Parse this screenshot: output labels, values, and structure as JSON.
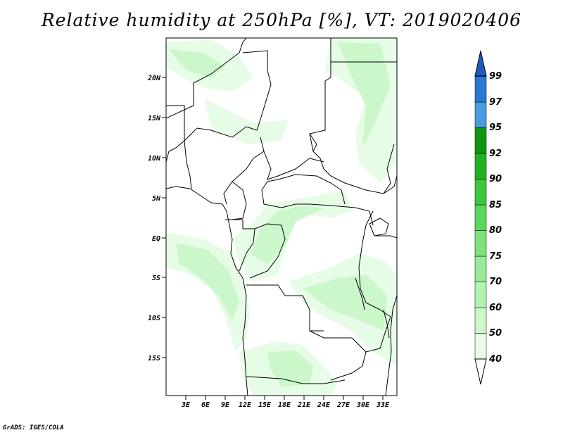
{
  "title": "Relative humidity at 250hPa [%], VT: 2019020406",
  "credit": "GrADS: IGES/COLA",
  "map": {
    "lat_labels": [
      "20N",
      "15N",
      "10N",
      "5N",
      "EQ",
      "5S",
      "10S",
      "15S"
    ],
    "lon_labels": [
      "3E",
      "6E",
      "9E",
      "12E",
      "15E",
      "18E",
      "21E",
      "24E",
      "27E",
      "30E",
      "33E"
    ]
  },
  "colorbar": {
    "levels": [
      "40",
      "50",
      "60",
      "70",
      "75",
      "80",
      "85",
      "90",
      "92",
      "95",
      "97",
      "99"
    ],
    "colors": [
      "#ffffff",
      "#e6fce6",
      "#cbf7cb",
      "#b2f2b2",
      "#98ea98",
      "#7ce37c",
      "#5ad85a",
      "#3cc83c",
      "#22b022",
      "#129612",
      "#4a9be0",
      "#2a78d6",
      "#1e5ac0"
    ]
  }
}
